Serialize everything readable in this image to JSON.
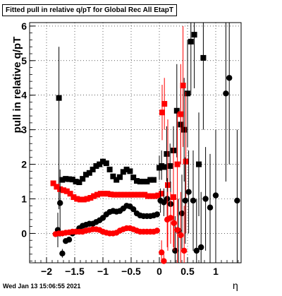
{
  "chart_data": {
    "type": "scatter",
    "title": "Fitted pull in relative q/pT for Global Rec All EtapT",
    "xlabel": "η",
    "ylabel": "pull in relative q/pT",
    "xlim": [
      -2.3,
      1.45
    ],
    "ylim": [
      -0.85,
      6.1
    ],
    "xticks": [
      -2,
      -1.5,
      -1,
      -0.5,
      0,
      0.5,
      1
    ],
    "xtick_labels": [
      "−2",
      "−1.5",
      "−1",
      "−0.5",
      "0",
      "0.5",
      "1"
    ],
    "yticks": [
      0,
      1,
      2,
      3,
      4,
      5,
      6
    ],
    "ytick_labels": [
      "0",
      "1",
      "2",
      "3",
      "4",
      "5",
      "6"
    ],
    "grid": true,
    "legend": "none",
    "colors": {
      "black": "#000000",
      "red": "#ff0000"
    },
    "series": [
      {
        "marker": "square",
        "color": "#000000",
        "points": [
          {
            "x": -1.78,
            "y": 3.92,
            "lo": 0.7,
            "hi": 5.4
          },
          {
            "x": -1.72,
            "y": 1.55
          },
          {
            "x": -1.66,
            "y": 1.58
          },
          {
            "x": -1.6,
            "y": 1.57
          },
          {
            "x": -1.54,
            "y": 1.56
          },
          {
            "x": -1.48,
            "y": 1.5
          },
          {
            "x": -1.42,
            "y": 1.48
          },
          {
            "x": -1.36,
            "y": 1.58
          },
          {
            "x": -1.3,
            "y": 1.7
          },
          {
            "x": -1.24,
            "y": 1.75
          },
          {
            "x": -1.18,
            "y": 1.85
          },
          {
            "x": -1.12,
            "y": 1.95
          },
          {
            "x": -1.06,
            "y": 2.0
          },
          {
            "x": -1.0,
            "y": 2.08
          },
          {
            "x": -0.94,
            "y": 2.03
          },
          {
            "x": -0.88,
            "y": 1.85
          },
          {
            "x": -0.82,
            "y": 1.65
          },
          {
            "x": -0.76,
            "y": 1.55
          },
          {
            "x": -0.7,
            "y": 1.63
          },
          {
            "x": -0.64,
            "y": 1.78
          },
          {
            "x": -0.58,
            "y": 1.85
          },
          {
            "x": -0.52,
            "y": 1.8
          },
          {
            "x": -0.46,
            "y": 1.62
          },
          {
            "x": -0.4,
            "y": 1.52
          },
          {
            "x": -0.34,
            "y": 1.5
          },
          {
            "x": -0.28,
            "y": 1.5
          },
          {
            "x": -0.22,
            "y": 1.5
          },
          {
            "x": -0.16,
            "y": 1.55
          },
          {
            "x": -0.1,
            "y": 1.55
          },
          {
            "x": 0.0,
            "y": 1.9,
            "lo": 1.55,
            "hi": 2.25
          },
          {
            "x": 0.04,
            "y": 1.95,
            "lo": 1.55,
            "hi": 2.4
          },
          {
            "x": 0.08,
            "y": 1.92
          },
          {
            "x": 0.13,
            "y": 2.3,
            "lo": 1.5,
            "hi": 3.1
          },
          {
            "x": 0.19,
            "y": 1.95,
            "lo": 1.35,
            "hi": 2.6
          },
          {
            "x": 0.25,
            "y": 2.4,
            "lo": 1.7,
            "hi": 3.1
          },
          {
            "x": 0.31,
            "y": 3.55,
            "lo": 2.2,
            "hi": 4.9
          },
          {
            "x": 0.38,
            "y": 3.15,
            "lo": 2.0,
            "hi": 4.3
          },
          {
            "x": 0.44,
            "y": 3.0,
            "lo": 1.5,
            "hi": 4.5
          },
          {
            "x": 0.5,
            "y": 4.05,
            "lo": 2.5,
            "hi": 5.6
          },
          {
            "x": 0.56,
            "y": 5.55,
            "lo": 4.0,
            "hi": 6.1
          },
          {
            "x": 0.62,
            "y": 5.75,
            "lo": 4.2,
            "hi": 6.1
          },
          {
            "x": 0.7,
            "y": 2.0,
            "lo": 0.5,
            "hi": 3.5
          },
          {
            "x": 0.78,
            "y": 5.08,
            "lo": 3.0,
            "hi": 6.1
          }
        ]
      },
      {
        "marker": "square",
        "color": "#ff0000",
        "points": [
          {
            "x": -1.88,
            "y": 1.45
          },
          {
            "x": -1.82,
            "y": 1.35
          },
          {
            "x": -1.76,
            "y": 1.28
          },
          {
            "x": -1.7,
            "y": 1.25
          },
          {
            "x": -1.64,
            "y": 1.22
          },
          {
            "x": -1.58,
            "y": 1.15
          },
          {
            "x": -1.52,
            "y": 1.05
          },
          {
            "x": -1.46,
            "y": 1.0
          },
          {
            "x": -1.4,
            "y": 0.98
          },
          {
            "x": -1.34,
            "y": 0.98
          },
          {
            "x": -1.28,
            "y": 1.0
          },
          {
            "x": -1.22,
            "y": 1.03
          },
          {
            "x": -1.16,
            "y": 1.08
          },
          {
            "x": -1.1,
            "y": 1.12
          },
          {
            "x": -1.04,
            "y": 1.15
          },
          {
            "x": -0.98,
            "y": 1.15
          },
          {
            "x": -0.92,
            "y": 1.15
          },
          {
            "x": -0.86,
            "y": 1.13
          },
          {
            "x": -0.8,
            "y": 1.12
          },
          {
            "x": -0.74,
            "y": 1.12
          },
          {
            "x": -0.68,
            "y": 1.12
          },
          {
            "x": -0.62,
            "y": 1.12
          },
          {
            "x": -0.56,
            "y": 1.12
          },
          {
            "x": -0.5,
            "y": 1.12
          },
          {
            "x": -0.44,
            "y": 1.12
          },
          {
            "x": -0.38,
            "y": 1.12
          },
          {
            "x": -0.32,
            "y": 1.12
          },
          {
            "x": -0.26,
            "y": 1.12
          },
          {
            "x": -0.2,
            "y": 1.08
          },
          {
            "x": -0.14,
            "y": 1.08
          },
          {
            "x": -0.08,
            "y": 1.08
          },
          {
            "x": -0.02,
            "y": 1.1
          },
          {
            "x": 0.04,
            "y": 1.15
          },
          {
            "x": 0.05,
            "y": 3.5,
            "lo": 2.7,
            "hi": 4.3
          },
          {
            "x": 0.09,
            "y": 3.75,
            "lo": 3.0,
            "hi": 4.5
          },
          {
            "x": 0.15,
            "y": 1.4,
            "lo": -0.5,
            "hi": 3.3
          },
          {
            "x": 0.25,
            "y": 1.05,
            "lo": -0.4,
            "hi": 2.5
          },
          {
            "x": 0.32,
            "y": 2.0,
            "lo": 0.5,
            "hi": 3.5
          },
          {
            "x": 0.38,
            "y": 3.45,
            "lo": 2.0,
            "hi": 4.9
          },
          {
            "x": 0.42,
            "y": 4.28,
            "lo": 2.5,
            "hi": 6.0
          },
          {
            "x": 0.47,
            "y": 2.08,
            "lo": 0.0,
            "hi": 4.1
          }
        ]
      },
      {
        "marker": "circle",
        "color": "#000000",
        "points": [
          {
            "x": -1.8,
            "y": 0.1,
            "lo": -0.4,
            "hi": 0.6
          },
          {
            "x": -1.76,
            "y": 0.88,
            "lo": -0.1,
            "hi": 1.85
          },
          {
            "x": -1.72,
            "y": -0.58,
            "lo": -0.7,
            "hi": -0.45
          },
          {
            "x": -1.66,
            "y": -0.22
          },
          {
            "x": -1.6,
            "y": -0.18
          },
          {
            "x": -1.54,
            "y": 0.0
          },
          {
            "x": -1.48,
            "y": 0.05
          },
          {
            "x": -1.42,
            "y": 0.15
          },
          {
            "x": -1.36,
            "y": 0.22
          },
          {
            "x": -1.3,
            "y": 0.25
          },
          {
            "x": -1.24,
            "y": 0.28
          },
          {
            "x": -1.18,
            "y": 0.28
          },
          {
            "x": -1.12,
            "y": 0.33
          },
          {
            "x": -1.06,
            "y": 0.38
          },
          {
            "x": -1.0,
            "y": 0.45
          },
          {
            "x": -0.94,
            "y": 0.55
          },
          {
            "x": -0.88,
            "y": 0.62
          },
          {
            "x": -0.82,
            "y": 0.65
          },
          {
            "x": -0.76,
            "y": 0.63
          },
          {
            "x": -0.7,
            "y": 0.65
          },
          {
            "x": -0.64,
            "y": 0.72
          },
          {
            "x": -0.58,
            "y": 0.8
          },
          {
            "x": -0.52,
            "y": 0.78
          },
          {
            "x": -0.46,
            "y": 0.7
          },
          {
            "x": -0.4,
            "y": 0.58
          },
          {
            "x": -0.34,
            "y": 0.52
          },
          {
            "x": -0.28,
            "y": 0.5
          },
          {
            "x": -0.22,
            "y": 0.5
          },
          {
            "x": -0.16,
            "y": 0.5
          },
          {
            "x": -0.1,
            "y": 0.52
          },
          {
            "x": -0.04,
            "y": 0.55
          },
          {
            "x": 0.02,
            "y": 0.95,
            "lo": 0.6,
            "hi": 1.3
          },
          {
            "x": 0.08,
            "y": 0.9,
            "lo": 0.5,
            "hi": 1.3
          },
          {
            "x": 0.14,
            "y": 1.0,
            "lo": 0.4,
            "hi": 1.6
          },
          {
            "x": 0.2,
            "y": 0.85,
            "lo": 0.2,
            "hi": 1.5
          },
          {
            "x": 0.28,
            "y": -0.5,
            "lo": -0.85,
            "hi": 0.5
          },
          {
            "x": 0.34,
            "y": 0.08,
            "lo": -0.85,
            "hi": 1.0
          },
          {
            "x": 0.4,
            "y": 0.58,
            "lo": -0.5,
            "hi": 1.7
          },
          {
            "x": 0.46,
            "y": 0.95,
            "lo": -0.3,
            "hi": 2.2
          },
          {
            "x": 0.52,
            "y": 1.2,
            "lo": 0.0,
            "hi": 2.4
          },
          {
            "x": 0.6,
            "y": 0.95,
            "lo": -0.5,
            "hi": 2.4
          },
          {
            "x": 0.66,
            "y": -0.5,
            "lo": -0.85,
            "hi": 1.0
          },
          {
            "x": 0.74,
            "y": -0.4,
            "lo": -0.85,
            "hi": 1.2
          },
          {
            "x": 0.82,
            "y": 1.0,
            "lo": -0.5,
            "hi": 2.5
          },
          {
            "x": 0.9,
            "y": 0.75,
            "lo": -0.85,
            "hi": 2.3
          },
          {
            "x": 1.0,
            "y": 1.1,
            "lo": -0.85,
            "hi": 3.0
          },
          {
            "x": 1.18,
            "y": 4.05,
            "lo": 1.5,
            "hi": 6.1
          },
          {
            "x": 1.24,
            "y": 4.5,
            "lo": 2.0,
            "hi": 6.1
          },
          {
            "x": 1.38,
            "y": 0.95,
            "lo": -0.85,
            "hi": 3.0
          }
        ]
      },
      {
        "marker": "circle",
        "color": "#ff0000",
        "points": [
          {
            "x": -1.84,
            "y": -0.02
          },
          {
            "x": -1.78,
            "y": 0.0
          },
          {
            "x": -1.72,
            "y": 0.0
          },
          {
            "x": -1.66,
            "y": 0.02
          },
          {
            "x": -1.6,
            "y": 0.03
          },
          {
            "x": -1.54,
            "y": 0.05
          },
          {
            "x": -1.48,
            "y": 0.05
          },
          {
            "x": -1.42,
            "y": 0.05
          },
          {
            "x": -1.36,
            "y": 0.05
          },
          {
            "x": -1.3,
            "y": 0.08
          },
          {
            "x": -1.24,
            "y": 0.1
          },
          {
            "x": -1.18,
            "y": 0.12
          },
          {
            "x": -1.12,
            "y": 0.12
          },
          {
            "x": -1.06,
            "y": 0.1
          },
          {
            "x": -1.0,
            "y": 0.05
          },
          {
            "x": -0.94,
            "y": 0.02
          },
          {
            "x": -0.88,
            "y": 0.0
          },
          {
            "x": -0.82,
            "y": 0.0
          },
          {
            "x": -0.76,
            "y": 0.02
          },
          {
            "x": -0.7,
            "y": 0.08
          },
          {
            "x": -0.64,
            "y": 0.12
          },
          {
            "x": -0.58,
            "y": 0.15
          },
          {
            "x": -0.52,
            "y": 0.15
          },
          {
            "x": -0.46,
            "y": 0.12
          },
          {
            "x": -0.4,
            "y": 0.08
          },
          {
            "x": -0.34,
            "y": 0.05
          },
          {
            "x": -0.28,
            "y": 0.05
          },
          {
            "x": -0.22,
            "y": 0.05
          },
          {
            "x": -0.16,
            "y": 0.05
          },
          {
            "x": -0.1,
            "y": 0.05
          },
          {
            "x": -0.04,
            "y": 0.08
          },
          {
            "x": 0.04,
            "y": -0.55,
            "lo": -0.85,
            "hi": -0.2
          },
          {
            "x": 0.08,
            "y": -0.8,
            "lo": -0.85,
            "hi": -0.6
          },
          {
            "x": 0.14,
            "y": 0.4,
            "lo": -0.4,
            "hi": 1.2
          },
          {
            "x": 0.2,
            "y": 0.45,
            "lo": -0.3,
            "hi": 1.2
          },
          {
            "x": 0.26,
            "y": 0.3,
            "lo": -0.5,
            "hi": 1.1
          },
          {
            "x": 0.32,
            "y": 0.1,
            "lo": -0.85,
            "hi": 1.0
          },
          {
            "x": 0.38,
            "y": -0.05,
            "lo": -0.85,
            "hi": 1.2
          },
          {
            "x": 0.44,
            "y": -0.5,
            "lo": -0.85,
            "hi": 0.8
          }
        ]
      }
    ]
  },
  "footer": {
    "timestamp": "Wed Jan 13 15:06:55 2021"
  }
}
